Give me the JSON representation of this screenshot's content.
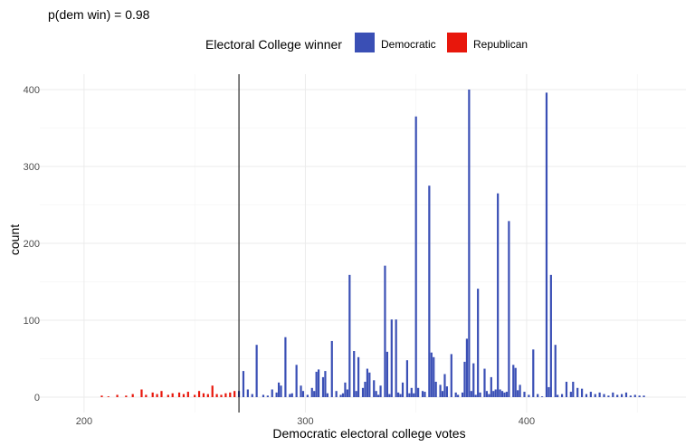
{
  "chart_data": {
    "type": "bar",
    "title": "p(dem win) = 0.98",
    "xlabel": "Democratic electoral college votes",
    "ylabel": "count",
    "xlim": [
      180,
      472
    ],
    "ylim": [
      -20,
      420
    ],
    "xticks": [
      200,
      300,
      400
    ],
    "yticks": [
      0,
      100,
      200,
      300,
      400
    ],
    "grid": true,
    "threshold_line": 270,
    "legend": {
      "title": "Electoral College winner",
      "position": "top",
      "entries": [
        {
          "label": "Democratic",
          "color": "#3a4fb5"
        },
        {
          "label": "Republican",
          "color": "#e8170c"
        }
      ]
    },
    "series": [
      {
        "name": "Republican",
        "color": "#e8170c",
        "x": [
          208,
          211,
          215,
          219,
          222,
          226,
          228,
          231,
          233,
          235,
          238,
          240,
          243,
          245,
          247,
          250,
          252,
          254,
          256,
          258,
          260,
          262,
          264,
          266,
          268
        ],
        "values": [
          2,
          1,
          3,
          2,
          4,
          10,
          3,
          6,
          4,
          8,
          3,
          5,
          6,
          4,
          7,
          3,
          8,
          5,
          4,
          15,
          4,
          3,
          5,
          6,
          8
        ]
      },
      {
        "name": "Democratic",
        "color": "#3a4fb5",
        "x": [
          270,
          272,
          274,
          276,
          278,
          281,
          283,
          285,
          287,
          288,
          289,
          291,
          293,
          294,
          296,
          298,
          299,
          301,
          303,
          304,
          305,
          306,
          308,
          309,
          310,
          312,
          314,
          316,
          317,
          318,
          319,
          320,
          322,
          323,
          324,
          326,
          327,
          328,
          329,
          331,
          332,
          333,
          334,
          336,
          337,
          338,
          339,
          341,
          342,
          343,
          344,
          346,
          347,
          348,
          349,
          350,
          351,
          353,
          354,
          356,
          357,
          358,
          359,
          361,
          362,
          363,
          364,
          366,
          368,
          369,
          371,
          372,
          373,
          374,
          375,
          376,
          377,
          378,
          379,
          381,
          382,
          383,
          384,
          385,
          386,
          387,
          388,
          389,
          390,
          391,
          392,
          394,
          395,
          396,
          397,
          399,
          401,
          403,
          405,
          407,
          409,
          410,
          411,
          413,
          414,
          416,
          418,
          420,
          421,
          423,
          425,
          427,
          429,
          431,
          433,
          435,
          437,
          439,
          441,
          443,
          445,
          447,
          449,
          451,
          453
        ],
        "values": [
          8,
          34,
          10,
          4,
          68,
          3,
          2,
          10,
          6,
          19,
          15,
          78,
          4,
          5,
          42,
          15,
          8,
          3,
          12,
          8,
          33,
          36,
          26,
          34,
          5,
          73,
          8,
          3,
          5,
          19,
          10,
          159,
          60,
          8,
          52,
          12,
          20,
          37,
          32,
          22,
          8,
          3,
          15,
          171,
          59,
          4,
          101,
          101,
          6,
          4,
          19,
          48,
          5,
          12,
          5,
          365,
          12,
          8,
          7,
          275,
          58,
          52,
          20,
          16,
          8,
          30,
          14,
          56,
          6,
          3,
          6,
          46,
          76,
          400,
          8,
          44,
          3,
          141,
          6,
          37,
          8,
          4,
          26,
          8,
          10,
          265,
          10,
          8,
          6,
          7,
          229,
          42,
          38,
          9,
          16,
          7,
          3,
          62,
          4,
          1,
          396,
          13,
          159,
          68,
          3,
          4,
          20,
          7,
          20,
          12,
          11,
          4,
          7,
          4,
          6,
          4,
          2,
          6,
          3,
          4,
          6,
          2,
          3,
          2,
          2
        ]
      }
    ]
  }
}
